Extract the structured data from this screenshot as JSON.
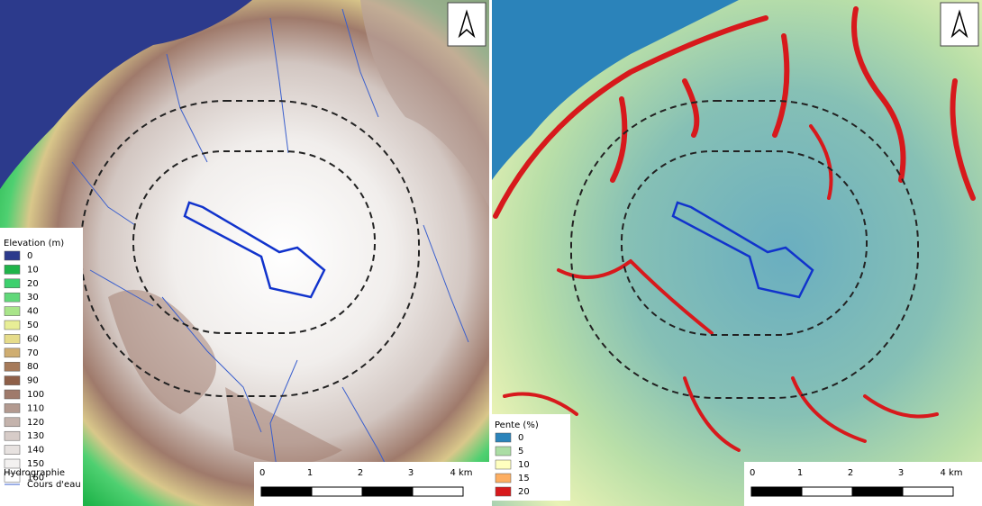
{
  "left_map": {
    "legend": {
      "title": "Elevation (m)",
      "items": [
        {
          "label": "0",
          "color": "#2c3a8c"
        },
        {
          "label": "10",
          "color": "#1fb44a"
        },
        {
          "label": "20",
          "color": "#3dd06e"
        },
        {
          "label": "30",
          "color": "#60d879"
        },
        {
          "label": "40",
          "color": "#a9e58a"
        },
        {
          "label": "50",
          "color": "#e8ee96"
        },
        {
          "label": "60",
          "color": "#e6dc8a"
        },
        {
          "label": "70",
          "color": "#cfad70"
        },
        {
          "label": "80",
          "color": "#a67a5a"
        },
        {
          "label": "90",
          "color": "#8e5f48"
        },
        {
          "label": "100",
          "color": "#9f7a6b"
        },
        {
          "label": "110",
          "color": "#b39a90"
        },
        {
          "label": "120",
          "color": "#c4b3ac"
        },
        {
          "label": "130",
          "color": "#d7ccc8"
        },
        {
          "label": "140",
          "color": "#e7e2e0"
        },
        {
          "label": "150",
          "color": "#f3f1f0"
        },
        {
          "label": "160",
          "color": "#ffffff"
        }
      ]
    },
    "hydro": {
      "title": "Hydrographie",
      "item": "Cours d'eau",
      "color": "#3a5fcd"
    },
    "scale": {
      "labels": [
        "0",
        "1",
        "2",
        "3",
        "4 km"
      ]
    }
  },
  "right_map": {
    "legend": {
      "title": "Pente (%)",
      "items": [
        {
          "label": "0",
          "color": "#2b83ba"
        },
        {
          "label": "5",
          "color": "#abdda4"
        },
        {
          "label": "10",
          "color": "#ffffbf"
        },
        {
          "label": "15",
          "color": "#fdae61"
        },
        {
          "label": "20",
          "color": "#d7191c"
        }
      ]
    },
    "scale": {
      "labels": [
        "0",
        "1",
        "2",
        "3",
        "4 km"
      ]
    }
  }
}
